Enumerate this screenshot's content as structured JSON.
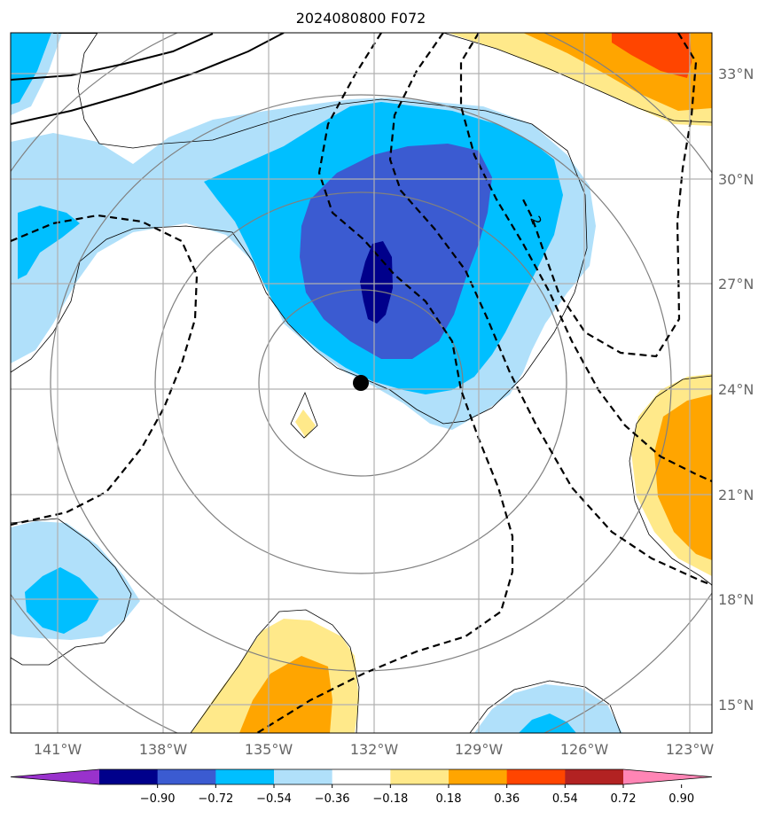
{
  "title": "2024080800 F072",
  "map": {
    "lon_labels": [
      "141°W",
      "138°W",
      "135°W",
      "132°W",
      "129°W",
      "126°W",
      "123°W"
    ],
    "lat_labels": [
      "33°N",
      "30°N",
      "27°N",
      "24°N",
      "21°N",
      "18°N",
      "15°N"
    ],
    "center_marker": {
      "name": "storm-center",
      "lon": "132.4°W",
      "lat": "24.2°N"
    },
    "contour_label": "2",
    "gridlines": true
  },
  "colorbar": {
    "ticks": [
      "−0.90",
      "−0.72",
      "−0.54",
      "−0.36",
      "−0.18",
      "0.18",
      "0.36",
      "0.54",
      "0.72",
      "0.90"
    ],
    "colors": [
      "#9932cc",
      "#00008b",
      "#3b5bd1",
      "#00bfff",
      "#b0e0fa",
      "#ffffff",
      "#ffe98a",
      "#ffa500",
      "#ff4500",
      "#b22222",
      "#ff85b5"
    ],
    "extend": "both"
  }
}
